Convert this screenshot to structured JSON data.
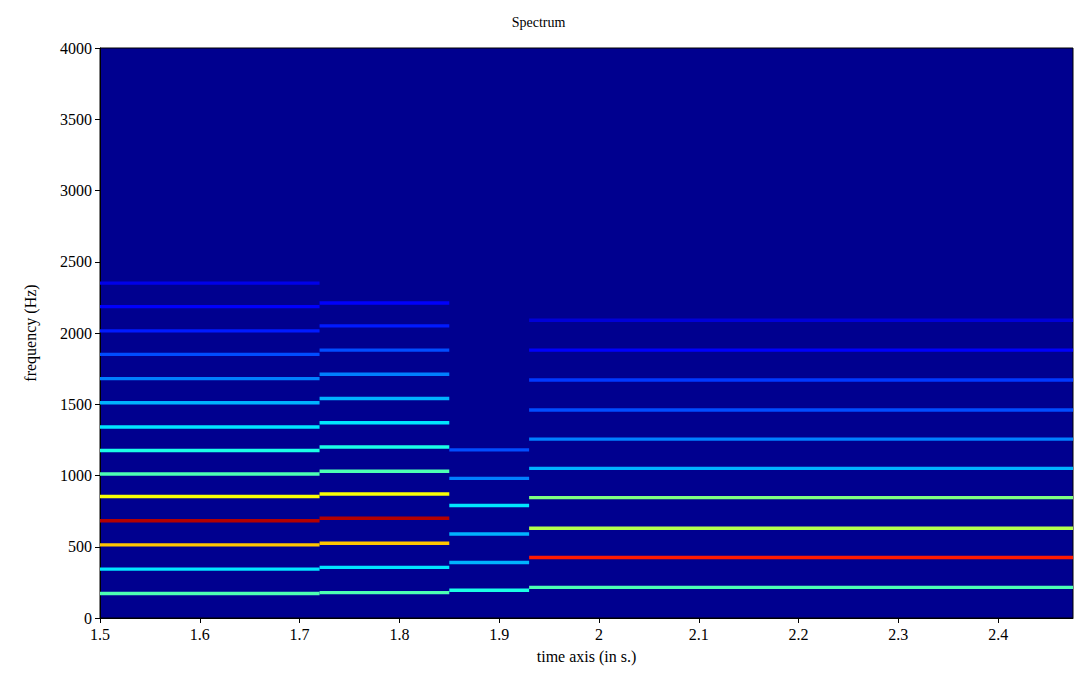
{
  "chart_data": {
    "type": "heatmap",
    "title": "Spectrum",
    "x_label": "time axis (in s.)",
    "y_label": "frequency (Hz)",
    "xlim": [
      1.5,
      2.475
    ],
    "xticks": [
      1.5,
      1.6,
      1.7,
      1.8,
      1.9,
      2,
      2.1,
      2.2,
      2.3,
      2.4
    ],
    "ylim": [
      0,
      4000
    ],
    "yticks": [
      0,
      500,
      1000,
      1500,
      2000,
      2500,
      3000,
      3500,
      4000
    ],
    "zlim": [
      0,
      1
    ],
    "grid": false,
    "cells": [
      [
        1.5,
        1.72,
        172,
        0.45
      ],
      [
        1.5,
        1.72,
        343,
        0.35
      ],
      [
        1.5,
        1.72,
        513,
        0.68
      ],
      [
        1.5,
        1.72,
        683,
        0.95
      ],
      [
        1.5,
        1.72,
        853,
        0.62
      ],
      [
        1.5,
        1.72,
        1010,
        0.45
      ],
      [
        1.5,
        1.72,
        1175,
        0.4
      ],
      [
        1.5,
        1.72,
        1340,
        0.35
      ],
      [
        1.5,
        1.72,
        1510,
        0.3
      ],
      [
        1.5,
        1.72,
        1680,
        0.25
      ],
      [
        1.5,
        1.72,
        1850,
        0.2
      ],
      [
        1.5,
        1.72,
        2015,
        0.15
      ],
      [
        1.5,
        1.72,
        2185,
        0.12
      ],
      [
        1.5,
        1.72,
        2350,
        0.1
      ],
      [
        1.72,
        1.85,
        178,
        0.45
      ],
      [
        1.72,
        1.85,
        355,
        0.35
      ],
      [
        1.72,
        1.85,
        525,
        0.68
      ],
      [
        1.72,
        1.85,
        700,
        0.95
      ],
      [
        1.72,
        1.85,
        870,
        0.62
      ],
      [
        1.72,
        1.85,
        1030,
        0.45
      ],
      [
        1.72,
        1.85,
        1200,
        0.4
      ],
      [
        1.72,
        1.85,
        1370,
        0.35
      ],
      [
        1.72,
        1.85,
        1540,
        0.3
      ],
      [
        1.72,
        1.85,
        1710,
        0.25
      ],
      [
        1.72,
        1.85,
        1880,
        0.2
      ],
      [
        1.72,
        1.85,
        2050,
        0.15
      ],
      [
        1.72,
        1.85,
        2210,
        0.12
      ],
      [
        1.85,
        1.93,
        195,
        0.4
      ],
      [
        1.85,
        1.93,
        390,
        0.3
      ],
      [
        1.85,
        1.93,
        590,
        0.3
      ],
      [
        1.85,
        1.93,
        790,
        0.35
      ],
      [
        1.85,
        1.93,
        980,
        0.25
      ],
      [
        1.85,
        1.93,
        1180,
        0.2
      ],
      [
        1.93,
        2.475,
        215,
        0.45
      ],
      [
        1.93,
        2.475,
        425,
        0.85
      ],
      [
        1.93,
        2.475,
        630,
        0.55
      ],
      [
        1.93,
        2.475,
        845,
        0.5
      ],
      [
        1.93,
        2.475,
        1050,
        0.3
      ],
      [
        1.93,
        2.475,
        1255,
        0.25
      ],
      [
        1.93,
        2.475,
        1460,
        0.2
      ],
      [
        1.93,
        2.475,
        1670,
        0.18
      ],
      [
        1.93,
        2.475,
        1880,
        0.12
      ],
      [
        1.93,
        2.475,
        2090,
        0.08
      ]
    ]
  }
}
